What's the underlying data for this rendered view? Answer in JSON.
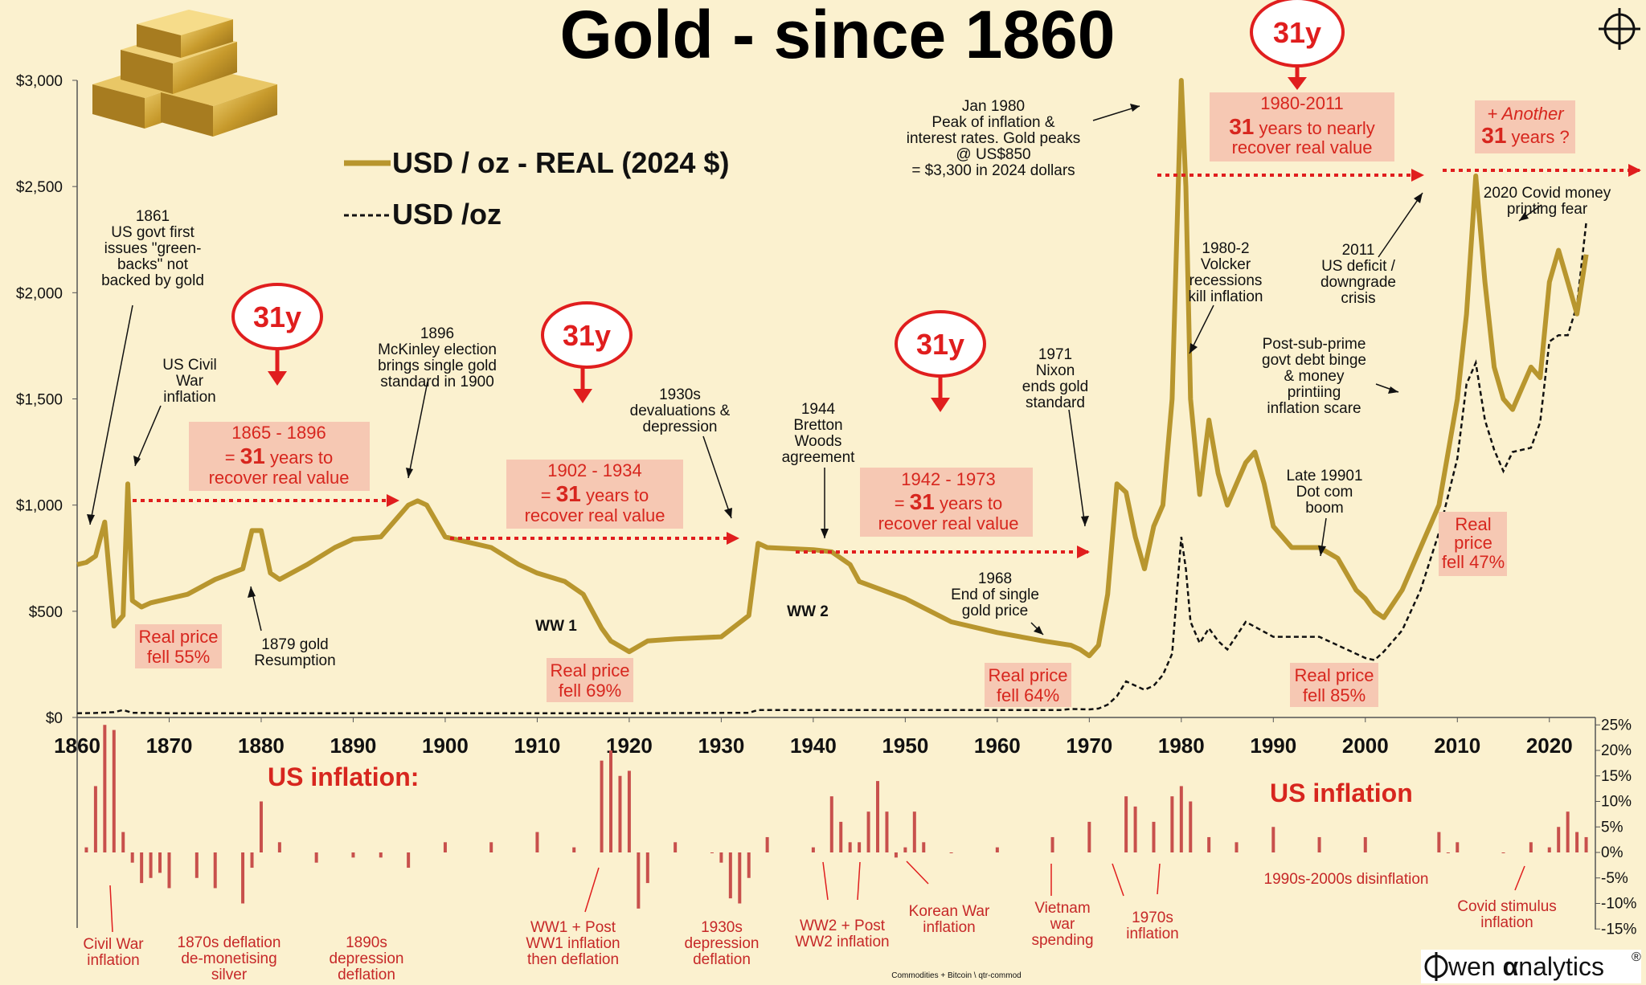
{
  "title": "Gold - since 1860",
  "legend": {
    "real": "USD / oz - REAL (2024 $)",
    "nominal": "USD /oz"
  },
  "colors": {
    "gold": "#b8962e",
    "nominal": "#111111",
    "red": "#e01e1e",
    "box": "#f6c8b3",
    "bars": "#c8504c",
    "bg": "#fbf1cf"
  },
  "y_ticks": [
    "$3,000",
    "$2,500",
    "$2,000",
    "$1,500",
    "$1,000",
    "$500",
    "$0"
  ],
  "x_ticks": [
    "1860",
    "1870",
    "1880",
    "1890",
    "1900",
    "1910",
    "1920",
    "1930",
    "1940",
    "1950",
    "1960",
    "1970",
    "1980",
    "1990",
    "2000",
    "2010",
    "2020"
  ],
  "infl_ticks": [
    "25%",
    "20%",
    "15%",
    "10%",
    "5%",
    "0%",
    "-5%",
    "-10%",
    "-15%"
  ],
  "badges": [
    "31y",
    "31y",
    "31y",
    "31y"
  ],
  "boxes": [
    {
      "l1": "1865 - 1896",
      "l2a": "= ",
      "l2b": "31",
      "l2c": " years to",
      "l3": "recover real value"
    },
    {
      "l1": "1902 - 1934",
      "l2a": "= ",
      "l2b": "31",
      "l2c": " years to",
      "l3": "recover real value"
    },
    {
      "l1": "1942 - 1973",
      "l2a": "= ",
      "l2b": "31",
      "l2c": " years to",
      "l3": "recover real value"
    },
    {
      "l1": "1980-2011",
      "l2a": "",
      "l2b": "31",
      "l2c": " years to nearly",
      "l3": "recover real value"
    },
    {
      "l1": "+ Another",
      "l2a": "",
      "l2b": "31",
      "l2c": " years ?",
      "l3": ""
    }
  ],
  "fell": [
    {
      "l1": "Real price",
      "l2": "fell 55%"
    },
    {
      "l1": "Real price",
      "l2": "fell 69%"
    },
    {
      "l1": "Real price",
      "l2": "fell 64%"
    },
    {
      "l1": "Real price",
      "l2": "fell 85%"
    },
    {
      "l1": "Real",
      "l2": "price",
      "l3": "fell 47%"
    }
  ],
  "annotations": {
    "a1861": [
      "1861",
      "US govt first",
      "issues \"green-",
      "backs\" not",
      "backed by gold"
    ],
    "civilwar": [
      "US Civil",
      "War",
      "inflation"
    ],
    "a1879": [
      "1879 gold",
      "Resumption"
    ],
    "a1896": [
      "1896",
      "McKinley election",
      "brings single gold",
      "standard in 1900"
    ],
    "a1930s": [
      "1930s",
      "devaluations &",
      "depression"
    ],
    "ww1": "WW 1",
    "ww2": "WW 2",
    "a1944": [
      "1944",
      "Bretton",
      "Woods",
      "agreement"
    ],
    "a1968": [
      "1968",
      "End of single",
      "gold price"
    ],
    "a1971": [
      "1971",
      "Nixon",
      "ends gold",
      "standard"
    ],
    "a1980": [
      "Jan 1980",
      "Peak of inflation &",
      "interest rates. Gold peaks",
      "@ US$850",
      "= $3,300 in 2024 dollars"
    ],
    "volcker": [
      "1980-2",
      "Volcker",
      "recessions",
      "kill inflation"
    ],
    "a2011": [
      "2011",
      "US deficit /",
      "downgrade",
      "crisis"
    ],
    "subprime": [
      "Post-sub-prime",
      "govt debt binge",
      "& money",
      "printiing",
      "inflation scare"
    ],
    "dotcom": [
      "Late 19901",
      "Dot com",
      "boom"
    ],
    "covid": [
      "2020 Covid money",
      "printing fear"
    ]
  },
  "inflation": {
    "title_left": "US inflation:",
    "title_right": "US inflation",
    "notes": {
      "civilwar": [
        "Civil War",
        "inflation"
      ],
      "d1870s": [
        "1870s deflation",
        "de-monetising",
        "silver"
      ],
      "d1890s": [
        "1890s",
        "depression",
        "deflation"
      ],
      "ww1": [
        "WW1 + Post",
        "WW1 inflation",
        "then deflation"
      ],
      "d1930s": [
        "1930s",
        "depression",
        "deflation"
      ],
      "ww2": [
        "WW2 + Post",
        "WW2 inflation"
      ],
      "korea": [
        "Korean War",
        "inflation"
      ],
      "vietnam": [
        "Vietnam",
        "war",
        "spending"
      ],
      "i1970s": [
        "1970s",
        "inflation"
      ],
      "disinfl": "1990s-2000s disinflation",
      "covidinfl": [
        "Covid stimulus",
        "inflation"
      ]
    }
  },
  "footer": {
    "source": "Commodities + Bitcoin   \\ qtr-commod",
    "brand_a": "wen ",
    "brand_b": "α",
    "brand_c": "nalytics"
  },
  "chart_data": [
    {
      "type": "line",
      "title": "Gold - since 1860",
      "ylim": [
        0,
        3000
      ],
      "xlim": [
        1860,
        2025
      ],
      "series": [
        {
          "name": "USD / oz - REAL (2024 $)",
          "x": [
            1860,
            1861,
            1862,
            1863,
            1864,
            1865,
            1865.5,
            1866,
            1867,
            1868,
            1870,
            1872,
            1875,
            1878,
            1879,
            1880,
            1881,
            1882,
            1885,
            1888,
            1890,
            1893,
            1895,
            1896,
            1897,
            1898,
            1900,
            1902,
            1905,
            1908,
            1910,
            1913,
            1915,
            1917,
            1918,
            1920,
            1922,
            1925,
            1930,
            1933,
            1934,
            1935,
            1940,
            1942,
            1944,
            1945,
            1950,
            1955,
            1960,
            1965,
            1968,
            1969,
            1970,
            1971,
            1972,
            1973,
            1974,
            1975,
            1976,
            1977,
            1978,
            1979,
            1980,
            1980.5,
            1981,
            1982,
            1983,
            1984,
            1985,
            1986,
            1987,
            1988,
            1989,
            1990,
            1992,
            1995,
            1997,
            1999,
            2000,
            2001,
            2002,
            2004,
            2006,
            2008,
            2010,
            2011,
            2012,
            2013,
            2014,
            2015,
            2016,
            2018,
            2019,
            2020,
            2021,
            2022,
            2023,
            2024
          ],
          "values": [
            720,
            730,
            760,
            920,
            430,
            480,
            1100,
            550,
            520,
            540,
            560,
            580,
            650,
            700,
            880,
            880,
            680,
            650,
            720,
            800,
            840,
            850,
            950,
            1000,
            1020,
            1000,
            850,
            830,
            800,
            720,
            680,
            640,
            580,
            420,
            360,
            310,
            360,
            370,
            380,
            480,
            820,
            800,
            790,
            780,
            720,
            640,
            560,
            450,
            400,
            360,
            340,
            320,
            290,
            340,
            580,
            1100,
            1060,
            850,
            700,
            900,
            1000,
            1500,
            3000,
            2500,
            1500,
            1050,
            1400,
            1150,
            1000,
            1100,
            1200,
            1250,
            1100,
            900,
            800,
            800,
            750,
            600,
            560,
            500,
            470,
            600,
            800,
            1000,
            1500,
            1900,
            2550,
            2050,
            1650,
            1500,
            1450,
            1650,
            1600,
            2050,
            2200,
            2050,
            1900,
            2180
          ]
        },
        {
          "name": "USD /oz",
          "x": [
            1860,
            1862,
            1864,
            1865,
            1866,
            1870,
            1880,
            1900,
            1920,
            1933,
            1934,
            1940,
            1960,
            1967,
            1968,
            1970,
            1971,
            1972,
            1973,
            1974,
            1975,
            1976,
            1977,
            1978,
            1979,
            1980,
            1980.5,
            1981,
            1982,
            1983,
            1984,
            1985,
            1987,
            1990,
            1995,
            2000,
            2001,
            2002,
            2004,
            2006,
            2008,
            2010,
            2011,
            2012,
            2013,
            2014,
            2015,
            2016,
            2018,
            2019,
            2020,
            2021,
            2022,
            2023,
            2024
          ],
          "values": [
            20,
            21,
            25,
            35,
            22,
            20,
            20,
            20,
            20,
            22,
            35,
            35,
            35,
            35,
            40,
            38,
            42,
            60,
            100,
            170,
            150,
            130,
            150,
            200,
            300,
            850,
            700,
            450,
            350,
            420,
            360,
            320,
            450,
            380,
            380,
            280,
            270,
            310,
            410,
            600,
            870,
            1220,
            1570,
            1670,
            1400,
            1260,
            1160,
            1250,
            1270,
            1390,
            1770,
            1800,
            1800,
            1940,
            2330
          ]
        }
      ]
    },
    {
      "type": "bar",
      "title": "US inflation",
      "ylim": [
        -15,
        25
      ],
      "x": [
        1861,
        1862,
        1863,
        1864,
        1865,
        1866,
        1867,
        1868,
        1869,
        1870,
        1873,
        1875,
        1878,
        1879,
        1880,
        1882,
        1886,
        1890,
        1893,
        1896,
        1900,
        1905,
        1910,
        1914,
        1917,
        1918,
        1919,
        1920,
        1921,
        1922,
        1925,
        1929,
        1930,
        1931,
        1932,
        1933,
        1935,
        1940,
        1942,
        1943,
        1944,
        1945,
        1946,
        1947,
        1948,
        1949,
        1950,
        1951,
        1952,
        1955,
        1960,
        1966,
        1970,
        1974,
        1975,
        1977,
        1979,
        1980,
        1981,
        1983,
        1986,
        1990,
        1995,
        2000,
        2008,
        2009,
        2010,
        2015,
        2018,
        2020,
        2021,
        2022,
        2023,
        2024
      ],
      "values": [
        1,
        13,
        25,
        24,
        4,
        -2,
        -6,
        -5,
        -4,
        -7,
        -5,
        -7,
        -10,
        -3,
        10,
        2,
        -2,
        -1,
        -1,
        -3,
        2,
        2,
        4,
        1,
        18,
        20,
        15,
        16,
        -11,
        -6,
        2,
        0,
        -2,
        -9,
        -10,
        -5,
        3,
        1,
        11,
        6,
        2,
        2,
        8,
        14,
        8,
        -1,
        1,
        8,
        2,
        0,
        1,
        3,
        6,
        11,
        9,
        6,
        11,
        13,
        10,
        3,
        2,
        5,
        3,
        3,
        4,
        0,
        2,
        0,
        2,
        1,
        5,
        8,
        4,
        3
      ]
    }
  ]
}
